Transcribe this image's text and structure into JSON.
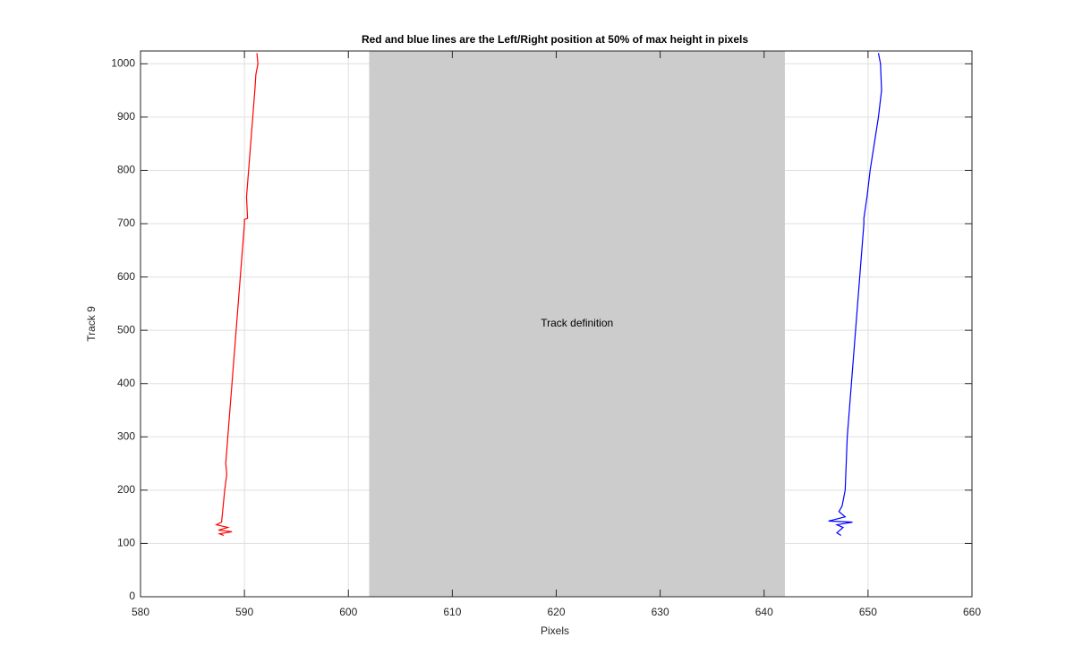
{
  "chart_data": {
    "type": "line",
    "title": "Red and blue lines are the Left/Right position at 50% of max height in pixels",
    "xlabel": "Pixels",
    "ylabel": "Track 9",
    "xlim": [
      580,
      660
    ],
    "ylim": [
      0,
      1024
    ],
    "xticks": [
      580,
      590,
      600,
      610,
      620,
      630,
      640,
      650,
      660
    ],
    "yticks": [
      0,
      100,
      200,
      300,
      400,
      500,
      600,
      700,
      800,
      900,
      1000
    ],
    "grid": true,
    "shaded_region": {
      "xlim": [
        602,
        642
      ],
      "color": "#cccccc",
      "label": "Track definition"
    },
    "series": [
      {
        "color": "#ff0000",
        "x": [
          591.2,
          591.3,
          591.1,
          591.0,
          590.8,
          590.6,
          590.4,
          590.2,
          590.3,
          590.0,
          590.0,
          589.8,
          589.6,
          589.4,
          589.2,
          589.0,
          588.8,
          588.6,
          588.4,
          588.2,
          588.3,
          588.1,
          588.0,
          587.9,
          587.8,
          587.3,
          588.4,
          587.5,
          588.8,
          587.6,
          588.0
        ],
        "y": [
          1020,
          1000,
          980,
          950,
          900,
          850,
          800,
          750,
          710,
          708,
          700,
          650,
          600,
          550,
          500,
          450,
          400,
          350,
          300,
          250,
          230,
          200,
          180,
          160,
          140,
          135,
          130,
          125,
          122,
          118,
          115
        ]
      },
      {
        "color": "#0000ff",
        "x": [
          651.0,
          651.2,
          651.3,
          651.0,
          650.6,
          650.2,
          649.9,
          649.6,
          649.6,
          649.4,
          649.2,
          649.0,
          648.8,
          648.6,
          648.4,
          648.2,
          648.0,
          647.9,
          647.8,
          647.5,
          647.2,
          647.8,
          646.2,
          648.5,
          647.0,
          647.6,
          647.0,
          647.4
        ],
        "y": [
          1020,
          1000,
          950,
          900,
          850,
          800,
          750,
          710,
          700,
          650,
          600,
          550,
          500,
          450,
          400,
          350,
          300,
          250,
          200,
          170,
          160,
          150,
          142,
          140,
          135,
          130,
          120,
          115
        ]
      }
    ]
  }
}
